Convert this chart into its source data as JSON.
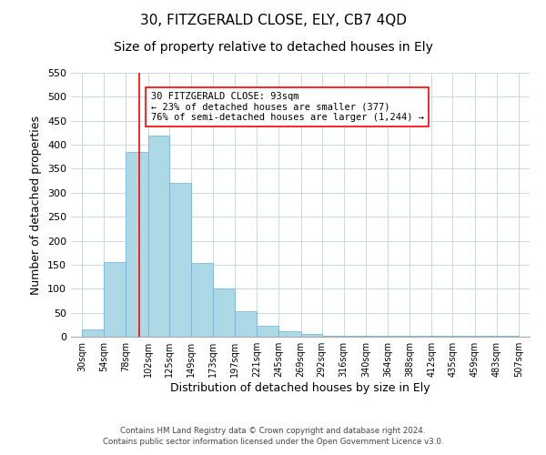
{
  "title": "30, FITZGERALD CLOSE, ELY, CB7 4QD",
  "subtitle": "Size of property relative to detached houses in Ely",
  "xlabel": "Distribution of detached houses by size in Ely",
  "ylabel": "Number of detached properties",
  "bar_left_edges": [
    30,
    54,
    78,
    102,
    125,
    149,
    173,
    197,
    221,
    245,
    269,
    292,
    316,
    340,
    364,
    388,
    412,
    435,
    459,
    483
  ],
  "bar_heights": [
    15,
    155,
    385,
    420,
    320,
    153,
    100,
    54,
    22,
    12,
    5,
    2,
    1,
    1,
    1,
    1,
    1,
    1,
    1,
    1
  ],
  "bar_widths": [
    24,
    24,
    24,
    23,
    24,
    24,
    24,
    24,
    24,
    24,
    23,
    24,
    24,
    24,
    24,
    24,
    23,
    24,
    24,
    24
  ],
  "bar_color": "#add8e6",
  "bar_edgecolor": "#6baed6",
  "tick_labels": [
    "30sqm",
    "54sqm",
    "78sqm",
    "102sqm",
    "125sqm",
    "149sqm",
    "173sqm",
    "197sqm",
    "221sqm",
    "245sqm",
    "269sqm",
    "292sqm",
    "316sqm",
    "340sqm",
    "364sqm",
    "388sqm",
    "412sqm",
    "435sqm",
    "459sqm",
    "483sqm",
    "507sqm"
  ],
  "tick_positions": [
    30,
    54,
    78,
    102,
    125,
    149,
    173,
    197,
    221,
    245,
    269,
    292,
    316,
    340,
    364,
    388,
    412,
    435,
    459,
    483,
    507
  ],
  "ylim": [
    0,
    550
  ],
  "xlim": [
    18,
    519
  ],
  "property_line_x": 93,
  "annotation_line1": "30 FITZGERALD CLOSE: 93sqm",
  "annotation_line2": "← 23% of detached houses are smaller (377)",
  "annotation_line3": "76% of semi-detached houses are larger (1,244) →",
  "footer_line1": "Contains HM Land Registry data © Crown copyright and database right 2024.",
  "footer_line2": "Contains public sector information licensed under the Open Government Licence v3.0.",
  "background_color": "#ffffff",
  "grid_color": "#c8d8e8",
  "title_fontsize": 11,
  "subtitle_fontsize": 10,
  "axis_label_fontsize": 9,
  "tick_fontsize": 7,
  "ytick_fontsize": 8
}
